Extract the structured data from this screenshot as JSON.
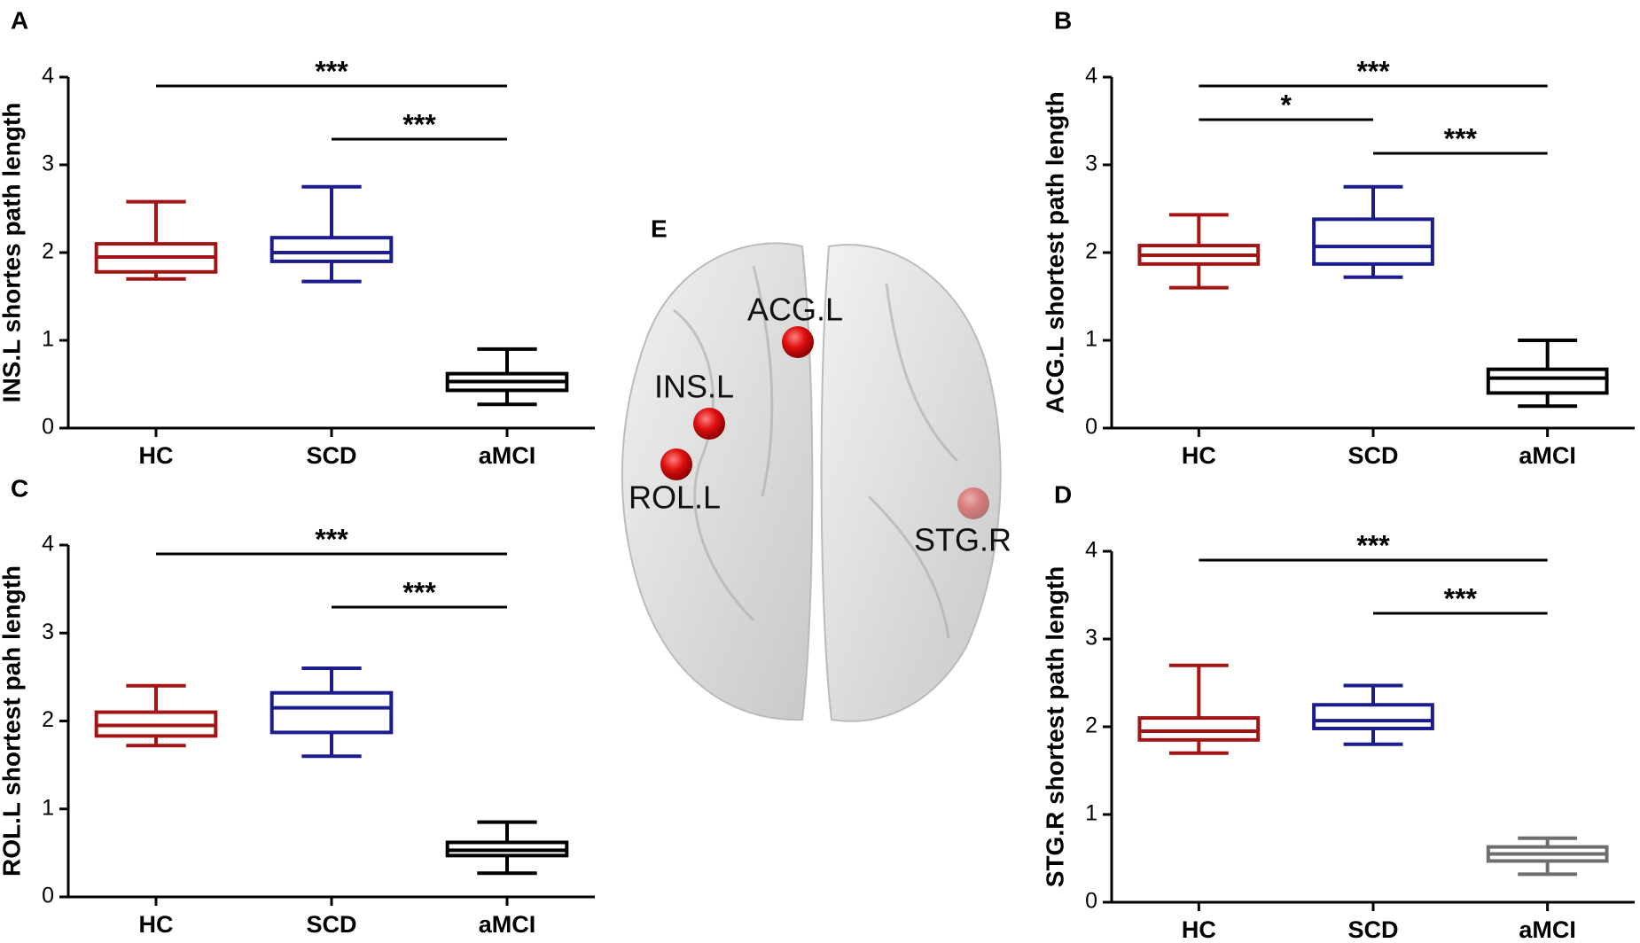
{
  "chart_data": [
    {
      "type": "box",
      "panel": "A",
      "ylabel": "INS.L shortes path length",
      "categories": [
        "HC",
        "SCD",
        "aMCI"
      ],
      "colors": [
        "#a31515",
        "#1c1c8e",
        "#000000"
      ],
      "boxes": [
        {
          "min": 1.7,
          "q1": 1.78,
          "median": 1.95,
          "q3": 2.1,
          "max": 2.58
        },
        {
          "min": 1.67,
          "q1": 1.9,
          "median": 2.0,
          "q3": 2.17,
          "max": 2.75
        },
        {
          "min": 0.27,
          "q1": 0.43,
          "median": 0.53,
          "q3": 0.62,
          "max": 0.9
        }
      ],
      "ylim": [
        0,
        4
      ],
      "yticks": [
        0,
        1,
        2,
        3,
        4
      ],
      "annotations": [
        {
          "text": "***",
          "from": "HC",
          "to": "aMCI"
        },
        {
          "text": "***",
          "from": "SCD",
          "to": "aMCI"
        }
      ]
    },
    {
      "type": "box",
      "panel": "B",
      "ylabel": "ACG.L shortest path length",
      "categories": [
        "HC",
        "SCD",
        "aMCI"
      ],
      "colors": [
        "#a31515",
        "#1c1c8e",
        "#000000"
      ],
      "boxes": [
        {
          "min": 1.6,
          "q1": 1.87,
          "median": 1.97,
          "q3": 2.08,
          "max": 2.43
        },
        {
          "min": 1.72,
          "q1": 1.87,
          "median": 2.07,
          "q3": 2.38,
          "max": 2.75
        },
        {
          "min": 0.25,
          "q1": 0.4,
          "median": 0.57,
          "q3": 0.67,
          "max": 1.0
        }
      ],
      "ylim": [
        0,
        4
      ],
      "yticks": [
        0,
        1,
        2,
        3,
        4
      ],
      "annotations": [
        {
          "text": "***",
          "from": "HC",
          "to": "aMCI"
        },
        {
          "text": "*",
          "from": "HC",
          "to": "SCD"
        },
        {
          "text": "***",
          "from": "SCD",
          "to": "aMCI"
        }
      ]
    },
    {
      "type": "box",
      "panel": "C",
      "ylabel": "ROL.L shortest pah length",
      "categories": [
        "HC",
        "SCD",
        "aMCI"
      ],
      "colors": [
        "#a31515",
        "#1c1c8e",
        "#000000"
      ],
      "boxes": [
        {
          "min": 1.72,
          "q1": 1.83,
          "median": 1.95,
          "q3": 2.1,
          "max": 2.4
        },
        {
          "min": 1.6,
          "q1": 1.87,
          "median": 2.15,
          "q3": 2.32,
          "max": 2.6
        },
        {
          "min": 0.27,
          "q1": 0.47,
          "median": 0.53,
          "q3": 0.62,
          "max": 0.85
        }
      ],
      "ylim": [
        0,
        4
      ],
      "yticks": [
        0,
        1,
        2,
        3,
        4
      ],
      "annotations": [
        {
          "text": "***",
          "from": "HC",
          "to": "aMCI"
        },
        {
          "text": "***",
          "from": "SCD",
          "to": "aMCI"
        }
      ]
    },
    {
      "type": "box",
      "panel": "D",
      "ylabel": "STG.R shortest path length",
      "categories": [
        "HC",
        "SCD",
        "aMCI"
      ],
      "colors": [
        "#a31515",
        "#1c1c8e",
        "#6e6e6e"
      ],
      "boxes": [
        {
          "min": 1.7,
          "q1": 1.85,
          "median": 1.95,
          "q3": 2.1,
          "max": 2.7
        },
        {
          "min": 1.8,
          "q1": 1.98,
          "median": 2.07,
          "q3": 2.25,
          "max": 2.47
        },
        {
          "min": 0.32,
          "q1": 0.47,
          "median": 0.55,
          "q3": 0.63,
          "max": 0.73
        }
      ],
      "ylim": [
        0,
        4
      ],
      "yticks": [
        0,
        1,
        2,
        3,
        4
      ],
      "annotations": [
        {
          "text": "***",
          "from": "HC",
          "to": "aMCI"
        },
        {
          "text": "***",
          "from": "SCD",
          "to": "aMCI"
        }
      ]
    }
  ],
  "brain": {
    "panel": "E",
    "regions": [
      "ACG.L",
      "INS.L",
      "ROL.L",
      "STG.R"
    ]
  }
}
